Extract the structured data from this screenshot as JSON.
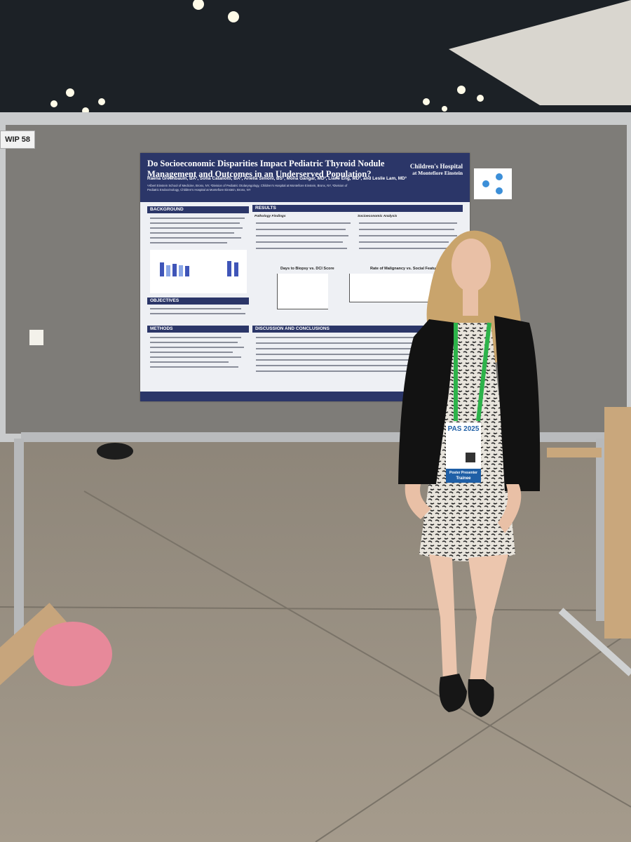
{
  "sign": "WIP 58",
  "poster": {
    "title": "Do Socioeconomic Disparities Impact Pediatric Thyroid Nodule Management and Outcomes in an Underserved Population?",
    "institution": [
      "Children's Hospital",
      "at Montefiore Einstein"
    ],
    "authors": "Raena Greenbaum, BA¹, Sofia Cataliotti, BA¹, Ariella Simoni, BS¹, Mona Gangar, MD², Liane Eng, MD³, and Leslie Lam, MD³",
    "affiliations": "¹Albert Einstein School of Medicine, Bronx, NY, ²Division of Pediatric Otolaryngology, Children's Hospital at Montefiore Einstein, Bronx, NY, ³Division of Pediatric Endocrinology, Children's Hospital at Montefiore Einstein, Bronx, NY",
    "sections": [
      "BACKGROUND",
      "OBJECTIVES",
      "METHODS",
      "RESULTS",
      "DISCUSSION AND CONCLUSIONS"
    ],
    "result_subheadings": [
      "Pathology Findings",
      "Socioeconomic Analysis"
    ],
    "figure_titles": [
      "Days to Biopsy vs. DCI Score",
      "Rate of Malignancy vs. Social Features"
    ]
  },
  "badge": {
    "event": "PAS 2025",
    "role": "Poster Presenter",
    "level": "Trainee"
  }
}
